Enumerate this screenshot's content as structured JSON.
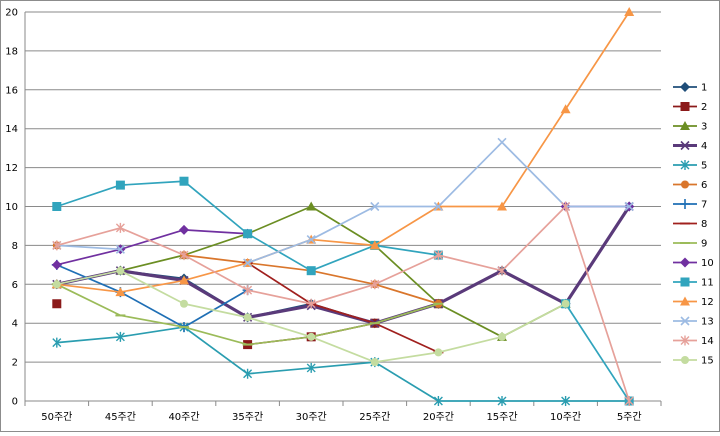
{
  "chart_data": {
    "type": "line",
    "categories": [
      "50주간",
      "45주간",
      "40주간",
      "35주간",
      "30주간",
      "25주간",
      "20주간",
      "15주간",
      "10주간",
      "5주간"
    ],
    "ylim": [
      0,
      20
    ],
    "yticks": [
      0,
      2,
      4,
      6,
      8,
      10,
      12,
      14,
      16,
      18,
      20
    ],
    "grid": true,
    "legend": "right",
    "series": [
      {
        "name": "1",
        "color": "#1f4e79",
        "marker": "diamond",
        "values": [
          6.0,
          6.7,
          6.3,
          4.3,
          5.0,
          4.0,
          5.0,
          6.7,
          5.0,
          10.0
        ]
      },
      {
        "name": "2",
        "color": "#8b1a1a",
        "marker": "square",
        "values": [
          5.0,
          null,
          null,
          2.9,
          3.3,
          4.0,
          5.0,
          null,
          null,
          null
        ]
      },
      {
        "name": "3",
        "color": "#6b8e23",
        "marker": "triangle",
        "values": [
          6.0,
          6.7,
          7.5,
          8.6,
          10.0,
          8.0,
          5.0,
          3.3,
          5.0,
          null
        ]
      },
      {
        "name": "4",
        "color": "#5a3a7a",
        "marker": "x",
        "values": [
          6.0,
          6.7,
          6.2,
          4.3,
          4.9,
          4.0,
          5.0,
          6.7,
          5.0,
          10.0
        ]
      },
      {
        "name": "5",
        "color": "#2a9db0",
        "marker": "star",
        "values": [
          3.0,
          3.3,
          3.8,
          1.4,
          1.7,
          2.0,
          0.0,
          0.0,
          0.0,
          0.0
        ]
      },
      {
        "name": "6",
        "color": "#d9762c",
        "marker": "circle",
        "values": [
          8.0,
          null,
          7.5,
          7.1,
          6.7,
          6.0,
          5.0,
          null,
          null,
          null
        ]
      },
      {
        "name": "7",
        "color": "#1f6fb5",
        "marker": "plus",
        "values": [
          7.0,
          5.6,
          3.8,
          5.7,
          null,
          null,
          null,
          null,
          null,
          null
        ]
      },
      {
        "name": "8",
        "color": "#a0201e",
        "marker": "dash",
        "values": [
          null,
          null,
          null,
          7.1,
          5.0,
          4.0,
          2.5,
          null,
          null,
          null
        ]
      },
      {
        "name": "9",
        "color": "#9bbb59",
        "marker": "dash",
        "values": [
          6.0,
          4.4,
          3.8,
          2.9,
          3.3,
          4.0,
          5.0,
          null,
          null,
          null
        ]
      },
      {
        "name": "10",
        "color": "#7030a0",
        "marker": "diamond",
        "values": [
          7.0,
          7.8,
          8.8,
          8.6,
          null,
          null,
          null,
          null,
          10.0,
          10.0
        ]
      },
      {
        "name": "11",
        "color": "#31a4bd",
        "marker": "square",
        "values": [
          10.0,
          11.1,
          11.3,
          8.6,
          6.7,
          8.0,
          7.5,
          null,
          5.0,
          0.0
        ]
      },
      {
        "name": "12",
        "color": "#f79646",
        "marker": "triangle",
        "values": [
          6.0,
          5.6,
          6.2,
          7.1,
          8.3,
          8.0,
          10.0,
          10.0,
          15.0,
          20.0
        ]
      },
      {
        "name": "13",
        "color": "#9dbbe3",
        "marker": "x",
        "values": [
          8.0,
          7.8,
          null,
          7.1,
          8.3,
          10.0,
          10.0,
          13.3,
          10.0,
          10.0
        ]
      },
      {
        "name": "14",
        "color": "#e6a19a",
        "marker": "star",
        "values": [
          8.0,
          8.9,
          7.5,
          5.7,
          5.0,
          6.0,
          7.5,
          6.7,
          10.0,
          0.0
        ]
      },
      {
        "name": "15",
        "color": "#c4dca0",
        "marker": "circle",
        "values": [
          6.0,
          6.7,
          5.0,
          4.3,
          3.3,
          2.0,
          2.5,
          3.3,
          5.0,
          null
        ]
      }
    ]
  }
}
